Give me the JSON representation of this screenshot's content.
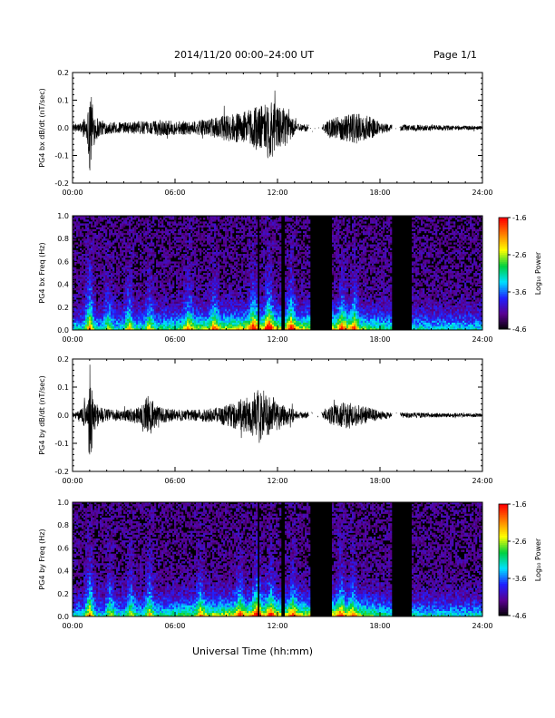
{
  "header": {
    "title": "2014/11/20  00:00–24:00 UT",
    "page": "Page 1/1"
  },
  "x_axis_title": "Universal Time (hh:mm)",
  "colorbar": {
    "label": "Log₁₀ Power",
    "tick_labels": [
      "-1.6",
      "-2.6",
      "-3.6",
      "-4.6"
    ],
    "range": [
      -4.6,
      -1.6
    ],
    "colors": [
      "#000000",
      "#5a0090",
      "#2020ff",
      "#00e0ff",
      "#00d040",
      "#ffff00",
      "#ff8000",
      "#ff0000"
    ]
  },
  "chart_data": [
    {
      "id": "bx-wave",
      "type": "line",
      "ylabel": "PG4 bx dB/dt (nT/sec)",
      "x_range_hours": [
        0,
        24
      ],
      "xticks": [
        "00:00",
        "06:00",
        "12:00",
        "18:00",
        "24:00"
      ],
      "ylim": [
        -0.2,
        0.2
      ],
      "yticks": [
        "0.2",
        "0.1",
        "0.0",
        "-0.1",
        "-0.2"
      ],
      "series": [
        {
          "x": [
            0.0,
            0.5,
            0.9,
            1.0,
            1.2,
            1.6,
            2.0,
            3.0,
            4.0,
            4.5,
            5.0,
            6.0,
            7.0,
            8.0,
            8.6,
            9.0,
            9.5,
            10.0,
            10.5,
            10.9,
            11.2,
            11.5,
            11.9,
            12.4,
            12.8,
            13.2,
            14.6,
            15.0,
            15.5,
            16.0,
            16.5,
            17.0,
            17.5,
            18.0,
            18.8,
            19.2,
            20.0,
            21.0,
            22.0,
            23.0,
            23.9
          ],
          "amp": [
            0.012,
            0.018,
            0.06,
            0.19,
            0.07,
            0.03,
            0.022,
            0.02,
            0.025,
            0.02,
            0.03,
            0.025,
            0.025,
            0.03,
            0.04,
            0.05,
            0.05,
            0.06,
            0.07,
            0.09,
            0.08,
            0.12,
            0.08,
            0.07,
            0.04,
            0.015,
            0.01,
            0.03,
            0.04,
            0.05,
            0.06,
            0.05,
            0.04,
            0.02,
            0.01,
            0.012,
            0.012,
            0.01,
            0.009,
            0.008,
            0.007
          ]
        }
      ],
      "gaps_hours": [
        [
          13.8,
          14.6
        ],
        [
          18.7,
          19.2
        ]
      ]
    },
    {
      "id": "bx-spec",
      "type": "heatmap",
      "ylabel": "PG4 bx Freq (Hz)",
      "x_range_hours": [
        0,
        24
      ],
      "xticks": [
        "00:00",
        "06:00",
        "12:00",
        "18:00",
        "24:00"
      ],
      "ylim": [
        0,
        1.0
      ],
      "yticks": [
        "1.0",
        "0.8",
        "0.6",
        "0.4",
        "0.2",
        "0.0"
      ],
      "gaps_hours": [
        [
          13.9,
          15.2
        ],
        [
          18.7,
          19.9
        ]
      ],
      "dark_lines_hours": [
        10.9,
        12.3
      ],
      "bursts": [
        {
          "t": 1.0,
          "strength": 0.55
        },
        {
          "t": 2.1,
          "strength": 0.3
        },
        {
          "t": 3.3,
          "strength": 0.35
        },
        {
          "t": 4.5,
          "strength": 0.3
        },
        {
          "t": 6.8,
          "strength": 0.35
        },
        {
          "t": 8.3,
          "strength": 0.3
        },
        {
          "t": 10.6,
          "strength": 0.4
        },
        {
          "t": 11.5,
          "strength": 0.5
        },
        {
          "t": 12.8,
          "strength": 0.4
        },
        {
          "t": 15.8,
          "strength": 0.35
        },
        {
          "t": 16.5,
          "strength": 0.35
        }
      ]
    },
    {
      "id": "by-wave",
      "type": "line",
      "ylabel": "PG4 by dB/dt (nT/sec)",
      "x_range_hours": [
        0,
        24
      ],
      "xticks": [
        "00:00",
        "06:00",
        "12:00",
        "18:00",
        "24:00"
      ],
      "ylim": [
        -0.2,
        0.2
      ],
      "yticks": [
        "0.2",
        "0.1",
        "0.0",
        "-0.1",
        "-0.2"
      ],
      "series": [
        {
          "x": [
            0.0,
            0.5,
            0.9,
            1.0,
            1.2,
            1.6,
            2.0,
            3.0,
            4.0,
            4.5,
            5.0,
            6.0,
            7.0,
            8.0,
            8.6,
            9.0,
            9.5,
            10.0,
            10.5,
            10.9,
            11.2,
            11.5,
            11.9,
            12.4,
            12.8,
            13.2,
            14.6,
            15.0,
            15.5,
            16.0,
            16.5,
            17.0,
            17.5,
            18.0,
            18.8,
            19.2,
            20.0,
            21.0,
            22.0,
            23.0,
            23.9
          ],
          "amp": [
            0.01,
            0.02,
            0.07,
            0.2,
            0.08,
            0.03,
            0.022,
            0.02,
            0.03,
            0.08,
            0.03,
            0.02,
            0.02,
            0.025,
            0.03,
            0.04,
            0.05,
            0.06,
            0.07,
            0.1,
            0.09,
            0.07,
            0.06,
            0.04,
            0.03,
            0.012,
            0.008,
            0.03,
            0.04,
            0.05,
            0.04,
            0.035,
            0.025,
            0.015,
            0.01,
            0.01,
            0.009,
            0.008,
            0.008,
            0.007,
            0.006
          ]
        }
      ],
      "gaps_hours": [
        [
          13.8,
          14.6
        ],
        [
          18.7,
          19.2
        ]
      ]
    },
    {
      "id": "by-spec",
      "type": "heatmap",
      "ylabel": "PG4 by Freq (Hz)",
      "x_range_hours": [
        0,
        24
      ],
      "xticks": [
        "00:00",
        "06:00",
        "12:00",
        "18:00",
        "24:00"
      ],
      "ylim": [
        0,
        1.0
      ],
      "yticks": [
        "1.0",
        "0.8",
        "0.6",
        "0.4",
        "0.2",
        "0.0"
      ],
      "gaps_hours": [
        [
          13.9,
          15.2
        ],
        [
          18.7,
          19.9
        ]
      ],
      "dark_lines_hours": [
        10.9,
        12.3
      ],
      "bursts": [
        {
          "t": 1.0,
          "strength": 0.5
        },
        {
          "t": 2.2,
          "strength": 0.3
        },
        {
          "t": 3.4,
          "strength": 0.3
        },
        {
          "t": 4.5,
          "strength": 0.35
        },
        {
          "t": 7.5,
          "strength": 0.3
        },
        {
          "t": 9.8,
          "strength": 0.3
        },
        {
          "t": 10.8,
          "strength": 0.45
        },
        {
          "t": 11.6,
          "strength": 0.35
        },
        {
          "t": 12.9,
          "strength": 0.3
        },
        {
          "t": 15.7,
          "strength": 0.35
        },
        {
          "t": 16.4,
          "strength": 0.3
        }
      ]
    }
  ]
}
